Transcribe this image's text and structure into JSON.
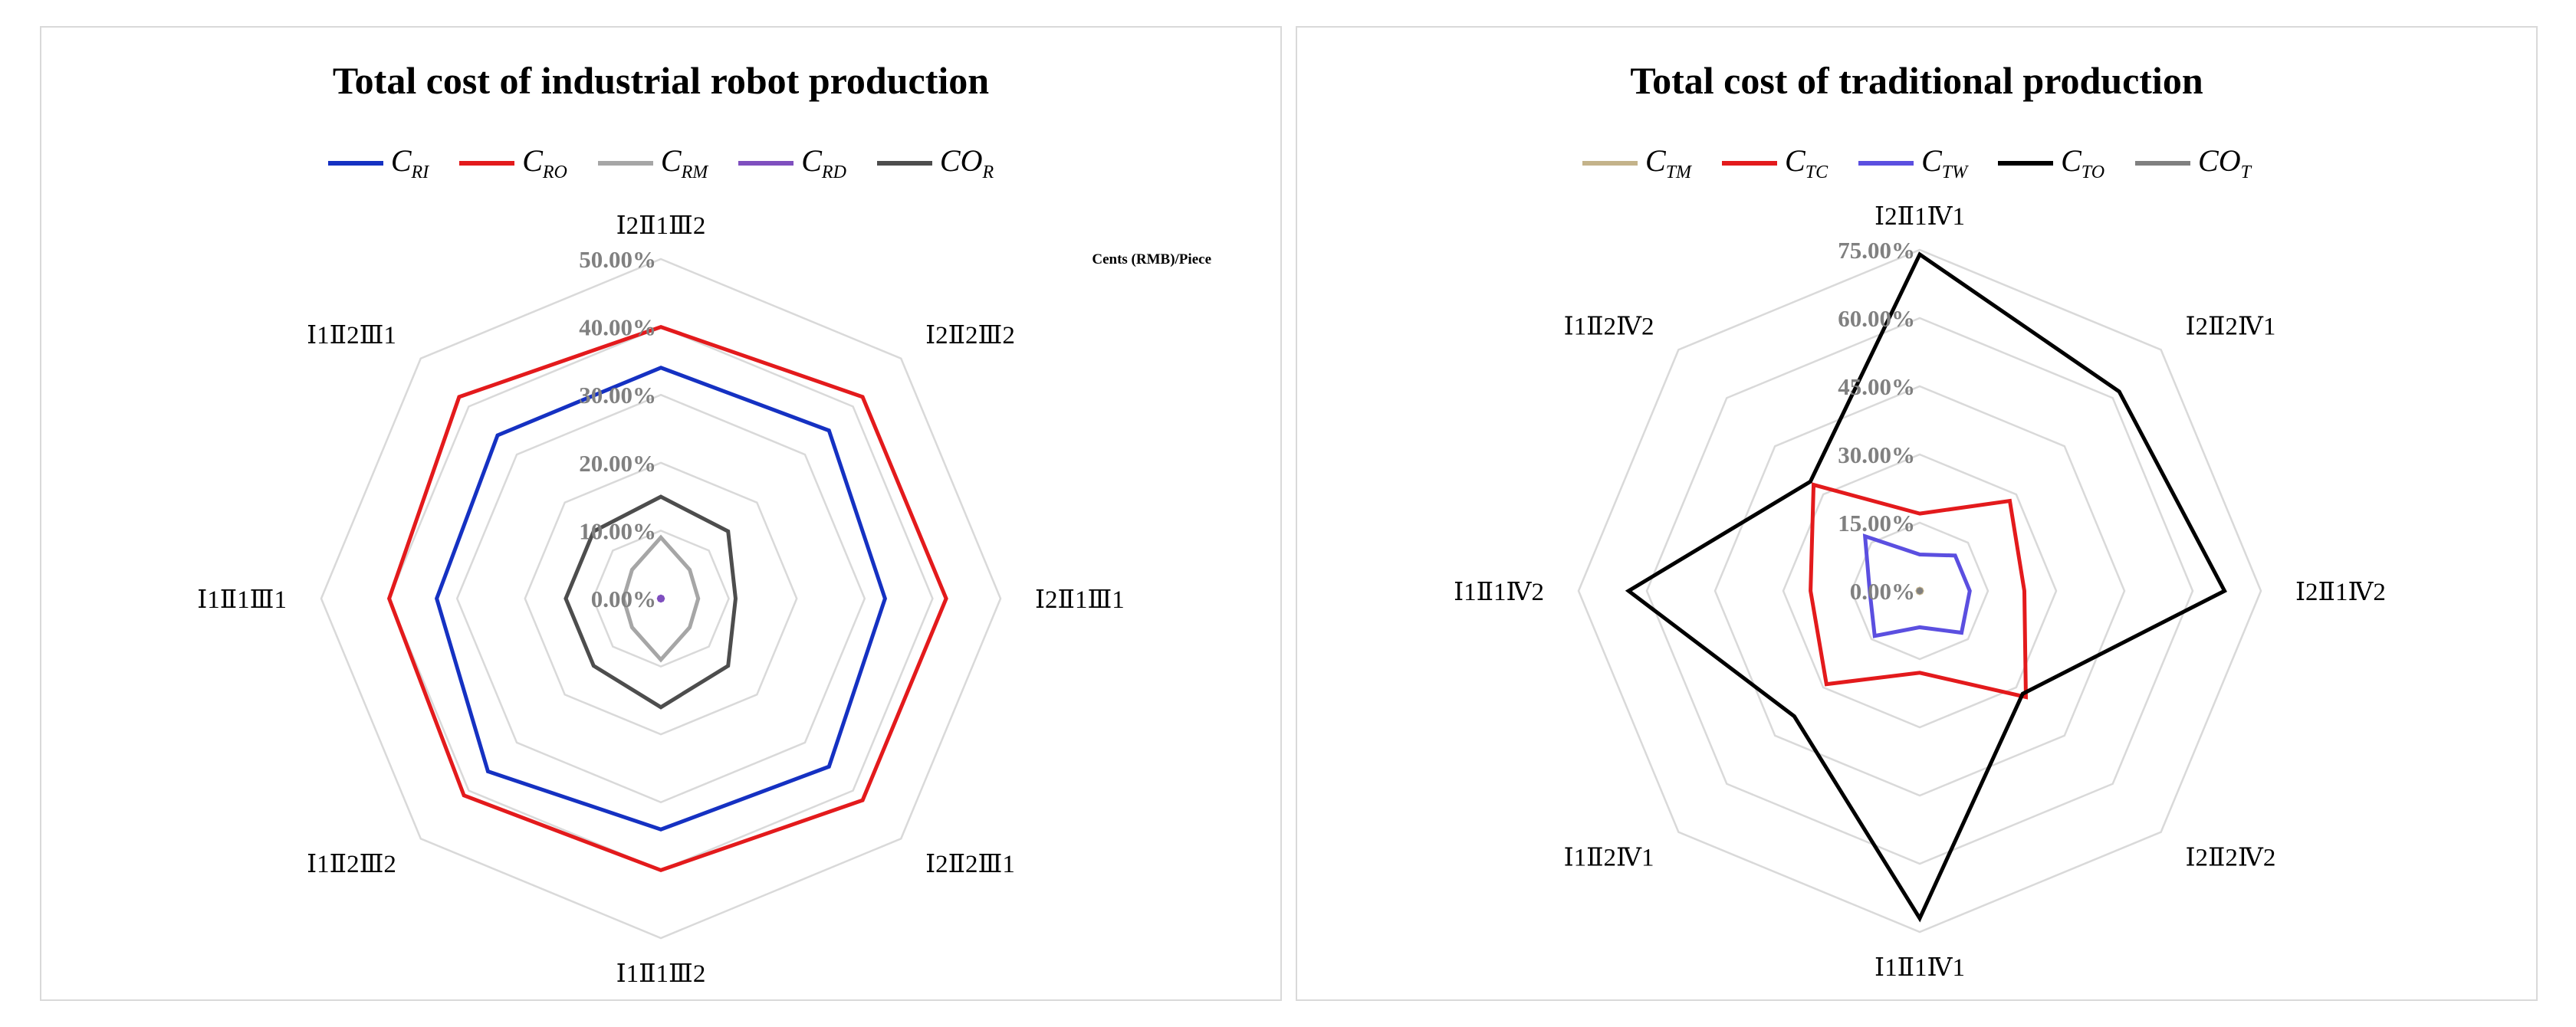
{
  "chart_data": [
    {
      "type": "radar",
      "title": "Total cost of industrial robot production",
      "unit_note": "Cents (RMB)/Piece",
      "categories": [
        "Ⅰ2Ⅱ1Ⅲ2",
        "Ⅰ2Ⅱ2Ⅲ2",
        "Ⅰ2Ⅱ1Ⅲ1",
        "Ⅰ2Ⅱ2Ⅲ1",
        "Ⅰ1Ⅱ1Ⅲ2",
        "Ⅰ1Ⅱ2Ⅲ2",
        "Ⅰ1Ⅱ1Ⅲ1",
        "Ⅰ1Ⅱ2Ⅲ1"
      ],
      "rmax": 50,
      "ticks": [
        {
          "value": 0,
          "label": "0.00%"
        },
        {
          "value": 10,
          "label": "10.00%"
        },
        {
          "value": 20,
          "label": "20.00%"
        },
        {
          "value": 30,
          "label": "30.00%"
        },
        {
          "value": 40,
          "label": "40.00%"
        },
        {
          "value": 50,
          "label": "50.00%"
        }
      ],
      "legend_position": "top",
      "grid": true,
      "series": [
        {
          "name": "C",
          "sub": "RI",
          "color": "#1531c2",
          "values": [
            34,
            35,
            33,
            35,
            34,
            36,
            33,
            34
          ]
        },
        {
          "name": "C",
          "sub": "RO",
          "color": "#e31a1c",
          "values": [
            40,
            42,
            42,
            42,
            40,
            41,
            40,
            42
          ]
        },
        {
          "name": "C",
          "sub": "RM",
          "color": "#a6a6a6",
          "values": [
            9,
            6,
            5.5,
            6,
            9,
            6,
            5.5,
            6
          ]
        },
        {
          "name": "C",
          "sub": "RD",
          "color": "#7f4fbf",
          "values": [
            0.3,
            0.3,
            0.3,
            0.3,
            0.3,
            0.3,
            0.3,
            0.3
          ]
        },
        {
          "name": "CO",
          "sub": "R",
          "color": "#4d4d4d",
          "values": [
            15,
            14,
            11,
            14,
            16,
            14,
            14,
            14
          ]
        }
      ]
    },
    {
      "type": "radar",
      "title": "Total cost of traditional production",
      "categories": [
        "Ⅰ2Ⅱ1Ⅳ1",
        "Ⅰ2Ⅱ2Ⅳ1",
        "Ⅰ2Ⅱ1Ⅳ2",
        "Ⅰ2Ⅱ2Ⅳ2",
        "Ⅰ1Ⅱ1Ⅳ1",
        "Ⅰ1Ⅱ2Ⅳ1",
        "Ⅰ1Ⅱ1Ⅳ2",
        "Ⅰ1Ⅱ2Ⅳ2"
      ],
      "rmax": 75,
      "ticks": [
        {
          "value": 0,
          "label": "0.00%"
        },
        {
          "value": 15,
          "label": "15.00%"
        },
        {
          "value": 30,
          "label": "30.00%"
        },
        {
          "value": 45,
          "label": "45.00%"
        },
        {
          "value": 60,
          "label": "60.00%"
        },
        {
          "value": 75,
          "label": "75.00%"
        }
      ],
      "legend_position": "top",
      "grid": true,
      "series": [
        {
          "name": "C",
          "sub": "TM",
          "color": "#c4b38a",
          "values": [
            0.5,
            0.5,
            0.5,
            0.5,
            0.5,
            0.5,
            0.5,
            0.5
          ]
        },
        {
          "name": "C",
          "sub": "TC",
          "color": "#e31a1c",
          "values": [
            17,
            28,
            23,
            33,
            18,
            29,
            24,
            33
          ]
        },
        {
          "name": "C",
          "sub": "TW",
          "color": "#5b4fe0",
          "values": [
            8,
            11,
            11,
            13,
            8,
            14,
            11,
            17
          ]
        },
        {
          "name": "C",
          "sub": "TO",
          "color": "#000000",
          "values": [
            74,
            62,
            67,
            32,
            72,
            39,
            64,
            34
          ]
        },
        {
          "name": "CO",
          "sub": "T",
          "color": "#808080",
          "values": [
            0.3,
            0.3,
            0.3,
            0.3,
            0.3,
            0.3,
            0.3,
            0.3
          ]
        }
      ]
    }
  ]
}
